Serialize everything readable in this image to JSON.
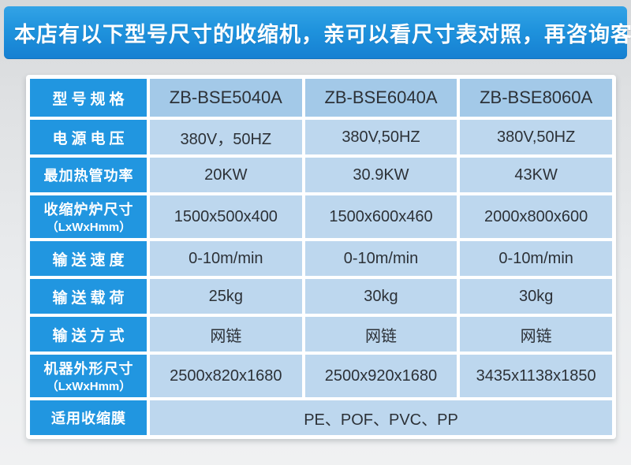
{
  "banner": {
    "text": "本店有以下型号尺寸的收缩机，亲可以看尺寸表对照，再咨询客服。"
  },
  "colors": {
    "banner_blue_top": "#33a3e6",
    "banner_blue_bottom": "#1680d2",
    "label_cell_blue": "#2196e0",
    "header_value_cell_blue": "#a3c9e8",
    "data_value_cell_blue": "#bdd7ee",
    "cell_text_dark": "#2c3137",
    "page_background_gray": "#e8eaec"
  },
  "table": {
    "rows": [
      {
        "label": "型号规格",
        "values": [
          "ZB-BSE5040A",
          "ZB-BSE6040A",
          "ZB-BSE8060A"
        ]
      },
      {
        "label": "电源电压",
        "values": [
          "380V，50HZ",
          "380V,50HZ",
          "380V,50HZ"
        ]
      },
      {
        "label": "最加热管功率",
        "values": [
          "20KW",
          "30.9KW",
          "43KW"
        ]
      },
      {
        "label": "收缩炉炉尺寸",
        "label_sub": "（LxWxHmm）",
        "values": [
          "1500x500x400",
          "1500x600x460",
          "2000x800x600"
        ]
      },
      {
        "label": "输送速度",
        "values": [
          "0-10m/min",
          "0-10m/min",
          "0-10m/min"
        ]
      },
      {
        "label": "输送载荷",
        "values": [
          "25kg",
          "30kg",
          "30kg"
        ]
      },
      {
        "label": "输送方式",
        "values": [
          "网链",
          "网链",
          "网链"
        ]
      },
      {
        "label": "机器外形尺寸",
        "label_sub": "（LxWxHmm）",
        "values": [
          "2500x820x1680",
          "2500x920x1680",
          "3435x1138x1850"
        ]
      },
      {
        "label": "适用收缩膜",
        "values": [
          "PE、POF、PVC、PP"
        ],
        "merged": true
      }
    ]
  }
}
